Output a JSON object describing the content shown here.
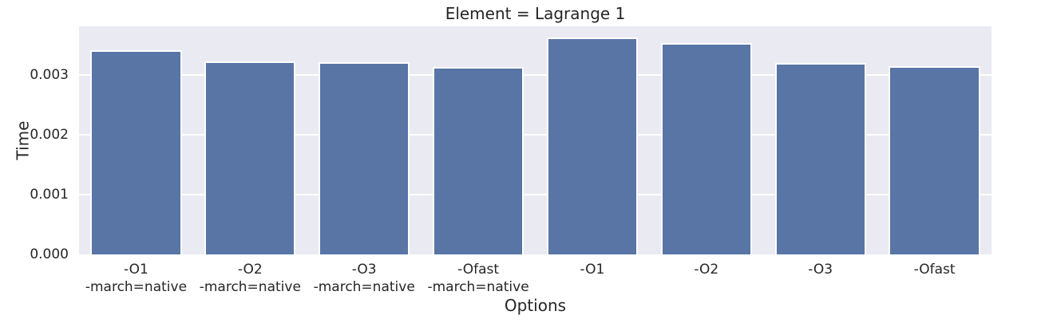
{
  "chart_data": {
    "type": "bar",
    "title": "Element = Lagrange 1",
    "xlabel": "Options",
    "ylabel": "Time",
    "categories": [
      [
        "-O1",
        "-march=native"
      ],
      [
        "-O2",
        "-march=native"
      ],
      [
        "-O3",
        "-march=native"
      ],
      [
        "-Ofast",
        "-march=native"
      ],
      [
        "-O1"
      ],
      [
        "-O2"
      ],
      [
        "-O3"
      ],
      [
        "-Ofast"
      ]
    ],
    "values": [
      0.00342,
      0.00323,
      0.00322,
      0.00314,
      0.00363,
      0.00354,
      0.00321,
      0.00315
    ],
    "ylim": [
      0,
      0.00382
    ],
    "yticks": [
      0,
      0.001,
      0.002,
      0.003
    ],
    "ytick_labels": [
      "0.000",
      "0.001",
      "0.002",
      "0.003"
    ],
    "grid": true,
    "legend": null,
    "bar_width_fraction": 0.8,
    "colors": {
      "bar_fill": "#5875a6",
      "bar_edge": "#fdfdfe",
      "plot_background": "#eaeaf2",
      "gridline": "#ffffff",
      "text": "#262626",
      "figure_background": "#ffffff"
    }
  }
}
